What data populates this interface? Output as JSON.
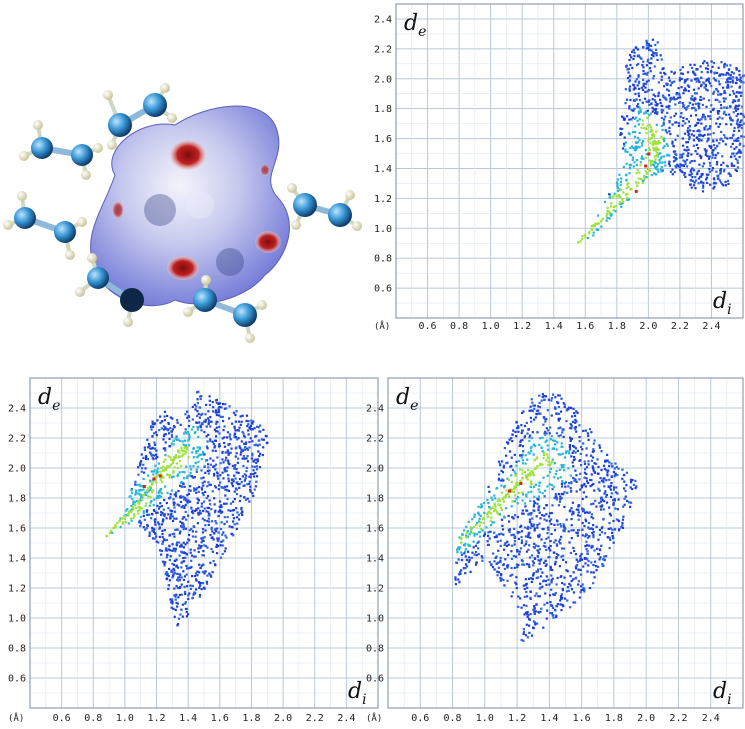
{
  "colors": {
    "grid": "#b8c8d8",
    "frame": "#7a8da4",
    "fingerprint_low": "#1c3fd6",
    "fingerprint_mid": "#27b5d8",
    "fingerprint_high": "#9ee23c",
    "fingerprint_peak": "#d7241b",
    "surface": "#8e95e0",
    "surface_hotspot": "#b41a1a",
    "carbon_atom": "#3b9ad8",
    "hydrogen_atom": "#f1f0c2"
  },
  "molecule": {
    "surface_icon": "hirshfeld-surface",
    "atom_icon": "ball-and-stick"
  },
  "chart_data": [
    {
      "type": "scatter",
      "panel": "top-right",
      "xlabel": "d",
      "xlabel_sub": "i",
      "ylabel": "d",
      "ylabel_sub": "e",
      "unit": "(Å)",
      "xlim": [
        0.4,
        2.6
      ],
      "ylim": [
        0.4,
        2.5
      ],
      "xticks": [
        "0.6",
        "0.8",
        "1.0",
        "1.2",
        "1.4",
        "1.6",
        "1.8",
        "2.0",
        "2.2",
        "2.4"
      ],
      "yticks": [
        "0.6",
        "0.8",
        "1.0",
        "1.2",
        "1.4",
        "1.6",
        "1.8",
        "2.0",
        "2.2",
        "2.4"
      ],
      "grid": true,
      "outline": [
        [
          1.5,
          0.85
        ],
        [
          1.6,
          0.9
        ],
        [
          1.8,
          1.1
        ],
        [
          1.95,
          1.3
        ],
        [
          2.1,
          1.4
        ],
        [
          2.2,
          1.3
        ],
        [
          2.35,
          1.25
        ],
        [
          2.5,
          1.3
        ],
        [
          2.6,
          1.45
        ],
        [
          2.6,
          2.05
        ],
        [
          2.55,
          2.1
        ],
        [
          2.4,
          2.15
        ],
        [
          2.25,
          2.1
        ],
        [
          2.1,
          2.05
        ],
        [
          2.05,
          2.3
        ],
        [
          2.0,
          2.3
        ],
        [
          1.95,
          2.2
        ],
        [
          1.9,
          2.25
        ],
        [
          1.85,
          2.1
        ],
        [
          1.85,
          1.85
        ],
        [
          1.8,
          1.7
        ],
        [
          1.85,
          1.45
        ],
        [
          1.7,
          1.15
        ],
        [
          1.55,
          0.9
        ]
      ],
      "core": [
        [
          1.55,
          0.9
        ],
        [
          1.9,
          1.25
        ],
        [
          2.1,
          1.6
        ],
        [
          1.95,
          1.85
        ],
        [
          1.85,
          1.6
        ],
        [
          1.75,
          1.2
        ]
      ],
      "ridge": [
        [
          1.55,
          0.92
        ],
        [
          1.95,
          1.32
        ],
        [
          2.05,
          1.5
        ],
        [
          2.0,
          1.7
        ]
      ],
      "peaks": [
        [
          1.92,
          1.25
        ],
        [
          1.98,
          1.42
        ],
        [
          2.0,
          1.5
        ]
      ]
    },
    {
      "type": "scatter",
      "panel": "bottom-left",
      "xlabel": "d",
      "xlabel_sub": "i",
      "ylabel": "d",
      "ylabel_sub": "e",
      "unit": "(Å)",
      "xlim": [
        0.4,
        2.6
      ],
      "ylim": [
        0.4,
        2.6
      ],
      "xticks": [
        "0.6",
        "0.8",
        "1.0",
        "1.2",
        "1.4",
        "1.6",
        "1.8",
        "2.0",
        "2.2",
        "2.4"
      ],
      "yticks": [
        "0.6",
        "0.8",
        "1.0",
        "1.2",
        "1.4",
        "1.6",
        "1.8",
        "2.0",
        "2.2",
        "2.4"
      ],
      "grid": true,
      "outline": [
        [
          0.87,
          1.55
        ],
        [
          1.0,
          1.75
        ],
        [
          1.1,
          2.1
        ],
        [
          1.2,
          2.42
        ],
        [
          1.35,
          2.32
        ],
        [
          1.45,
          2.52
        ],
        [
          1.55,
          2.48
        ],
        [
          1.7,
          2.4
        ],
        [
          1.85,
          2.3
        ],
        [
          1.9,
          2.2
        ],
        [
          1.85,
          2.0
        ],
        [
          1.8,
          1.8
        ],
        [
          1.7,
          1.6
        ],
        [
          1.6,
          1.4
        ],
        [
          1.45,
          1.1
        ],
        [
          1.32,
          0.93
        ],
        [
          1.28,
          1.1
        ],
        [
          1.25,
          1.3
        ],
        [
          1.2,
          1.5
        ],
        [
          1.05,
          1.65
        ]
      ],
      "core": [
        [
          0.9,
          1.58
        ],
        [
          1.15,
          1.85
        ],
        [
          1.3,
          2.2
        ],
        [
          1.45,
          2.3
        ],
        [
          1.5,
          2.05
        ],
        [
          1.3,
          1.85
        ],
        [
          1.1,
          1.7
        ]
      ],
      "ridge": [
        [
          0.88,
          1.56
        ],
        [
          1.05,
          1.75
        ],
        [
          1.2,
          1.95
        ],
        [
          1.35,
          2.1
        ]
      ],
      "peaks": [
        [
          1.12,
          1.88
        ],
        [
          1.18,
          1.93
        ],
        [
          1.22,
          1.95
        ]
      ]
    },
    {
      "type": "scatter",
      "panel": "bottom-right",
      "xlabel": "d",
      "xlabel_sub": "i",
      "ylabel": "d",
      "ylabel_sub": "e",
      "unit": "(Å)",
      "xlim": [
        0.4,
        2.6
      ],
      "ylim": [
        0.4,
        2.6
      ],
      "xticks": [
        "0.6",
        "0.8",
        "1.0",
        "1.2",
        "1.4",
        "1.6",
        "1.8",
        "2.0",
        "2.2",
        "2.4"
      ],
      "yticks": [
        "0.6",
        "0.8",
        "1.0",
        "1.2",
        "1.4",
        "1.6",
        "1.8",
        "2.0",
        "2.2",
        "2.4"
      ],
      "grid": true,
      "outline": [
        [
          0.82,
          1.52
        ],
        [
          1.0,
          1.85
        ],
        [
          1.1,
          2.1
        ],
        [
          1.2,
          2.35
        ],
        [
          1.3,
          2.5
        ],
        [
          1.45,
          2.5
        ],
        [
          1.6,
          2.35
        ],
        [
          1.75,
          2.1
        ],
        [
          1.9,
          1.95
        ],
        [
          1.95,
          1.9
        ],
        [
          1.85,
          1.6
        ],
        [
          1.65,
          1.2
        ],
        [
          1.5,
          1.05
        ],
        [
          1.3,
          0.9
        ],
        [
          1.2,
          0.8
        ],
        [
          1.25,
          1.0
        ],
        [
          1.0,
          1.4
        ],
        [
          0.8,
          1.2
        ]
      ],
      "core": [
        [
          0.9,
          1.55
        ],
        [
          1.1,
          1.85
        ],
        [
          1.3,
          2.25
        ],
        [
          1.5,
          2.2
        ],
        [
          1.55,
          1.95
        ],
        [
          1.3,
          1.8
        ]
      ],
      "ridge": [
        [
          0.84,
          1.52
        ],
        [
          1.05,
          1.75
        ],
        [
          1.2,
          1.9
        ],
        [
          1.35,
          2.05
        ]
      ],
      "peaks": [
        [
          1.15,
          1.85
        ],
        [
          1.22,
          1.9
        ]
      ]
    }
  ]
}
